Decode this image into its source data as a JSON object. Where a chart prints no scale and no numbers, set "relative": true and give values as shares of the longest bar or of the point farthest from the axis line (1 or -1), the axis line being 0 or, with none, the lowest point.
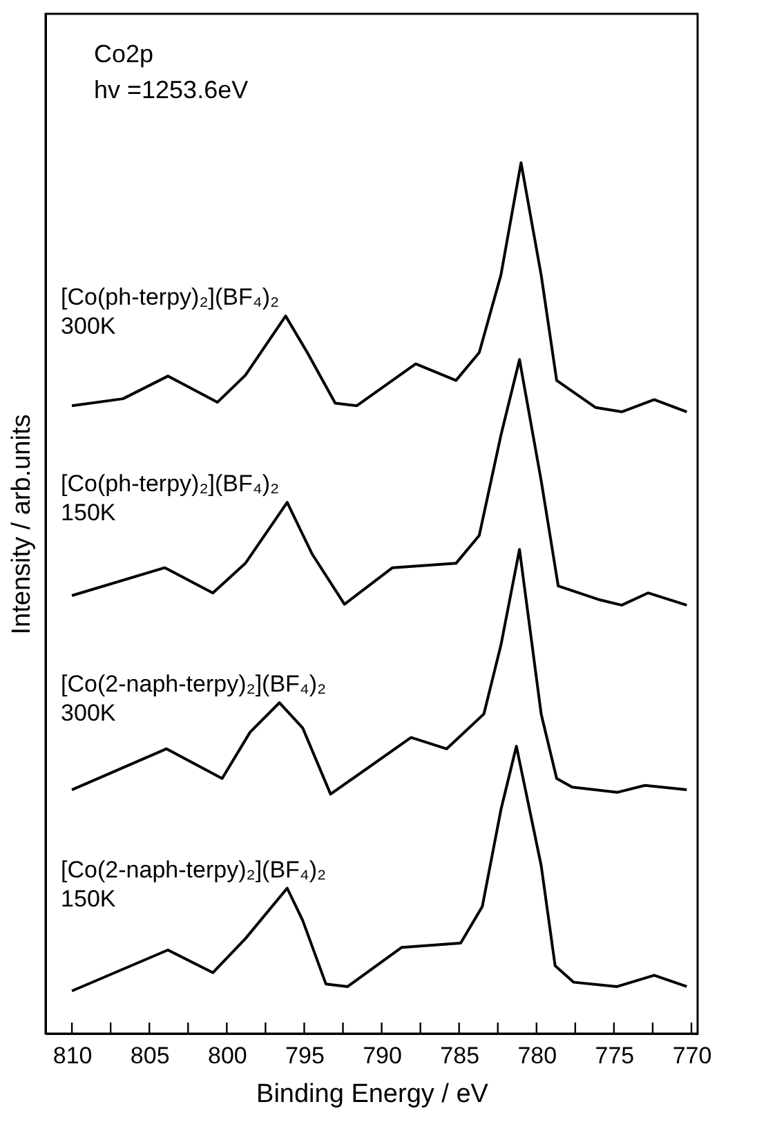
{
  "chart_data": {
    "type": "line",
    "relative": true,
    "xlabel": "Binding Energy / eV",
    "ylabel": "Intensity / arb.units",
    "annotations": [
      "Co2p",
      "hv =1253.6eV"
    ],
    "xlim": [
      811.7,
      769.6
    ],
    "xticks": [
      810,
      {
        "value": 807.5,
        "label": null
      },
      805,
      {
        "value": 802.5,
        "label": null
      },
      800,
      {
        "value": 797.5,
        "label": null
      },
      795,
      {
        "value": 792.5,
        "label": null
      },
      790,
      {
        "value": 787.5,
        "label": null
      },
      785,
      {
        "value": 782.5,
        "label": null
      },
      780,
      {
        "value": 777.5,
        "label": null
      },
      775,
      {
        "value": 772.5,
        "label": null
      },
      770
    ],
    "grid": false,
    "legend": false,
    "marker": "none",
    "line_style": "solid",
    "series": [
      {
        "name": "[Co(ph-terpy)₂](BF₄)₂\n300K",
        "color": "#000000",
        "x": [
          810,
          806.7,
          803.8,
          800.6,
          798.8,
          796.2,
          794.8,
          793.0,
          791.6,
          787.8,
          785.2,
          783.7,
          782.3,
          781.0,
          779.7,
          778.7,
          776.2,
          774.5,
          772.4,
          770.3
        ],
        "values": [
          0.721,
          0.729,
          0.755,
          0.725,
          0.756,
          0.824,
          0.782,
          0.724,
          0.721,
          0.769,
          0.75,
          0.782,
          0.871,
          1.0,
          0.871,
          0.75,
          0.719,
          0.714,
          0.728,
          0.714
        ]
      },
      {
        "name": "[Co(ph-terpy)₂](BF₄)₂\n150K",
        "color": "#000000",
        "x": [
          810,
          804.0,
          800.9,
          798.8,
          796.1,
          794.5,
          792.4,
          789.3,
          785.2,
          783.7,
          782.3,
          781.1,
          779.7,
          778.6,
          775.9,
          774.5,
          772.8,
          770.3
        ],
        "values": [
          0.503,
          0.535,
          0.506,
          0.54,
          0.61,
          0.551,
          0.493,
          0.535,
          0.54,
          0.572,
          0.687,
          0.774,
          0.635,
          0.514,
          0.498,
          0.492,
          0.506,
          0.492
        ]
      },
      {
        "name": "[Co(2-naph-terpy)₂](BF₄)₂\n300K",
        "color": "#000000",
        "x": [
          810,
          803.9,
          800.3,
          798.5,
          796.6,
          795.1,
          793.3,
          788.1,
          785.8,
          783.4,
          782.3,
          781.1,
          779.7,
          778.7,
          777.7,
          774.8,
          773.0,
          770.3
        ],
        "values": [
          0.28,
          0.327,
          0.293,
          0.346,
          0.38,
          0.351,
          0.275,
          0.34,
          0.327,
          0.367,
          0.446,
          0.556,
          0.367,
          0.293,
          0.283,
          0.277,
          0.285,
          0.28
        ]
      },
      {
        "name": "[Co(2-naph-terpy)₂](BF₄)₂\n150K",
        "color": "#000000",
        "x": [
          810,
          803.8,
          800.9,
          798.8,
          796.1,
          795.1,
          793.6,
          792.2,
          788.7,
          784.9,
          783.5,
          782.3,
          781.3,
          779.7,
          778.8,
          777.6,
          774.8,
          772.4,
          770.3
        ],
        "values": [
          0.049,
          0.096,
          0.07,
          0.109,
          0.167,
          0.13,
          0.057,
          0.054,
          0.099,
          0.104,
          0.146,
          0.257,
          0.33,
          0.193,
          0.078,
          0.059,
          0.054,
          0.067,
          0.054
        ]
      }
    ]
  }
}
